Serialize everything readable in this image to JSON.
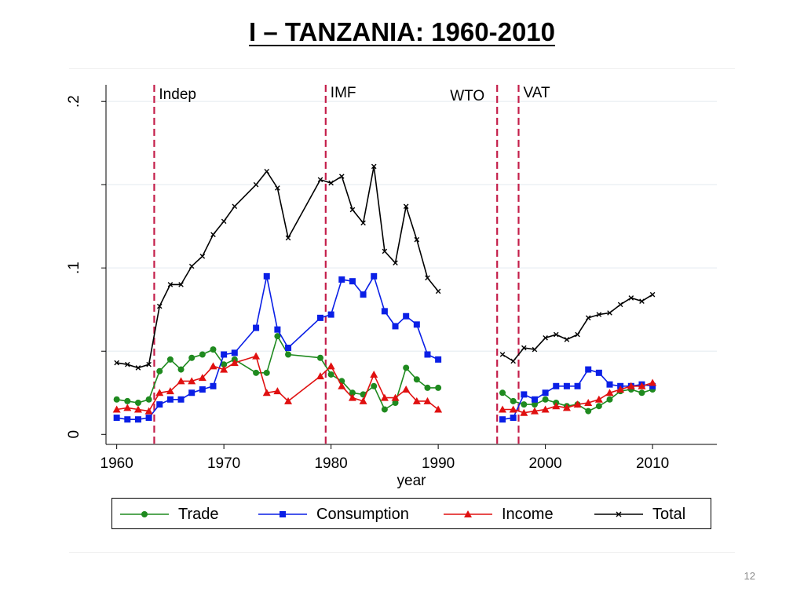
{
  "slide": {
    "title": "I – TANZANIA: 1960-2010",
    "page_number": "12"
  },
  "colors": {
    "trade": "#1f8a1f",
    "consumption": "#0a1fe6",
    "income": "#e01010",
    "total": "#000000",
    "event_line": "#c41e4a",
    "grid": "#e8eef2"
  },
  "chart_data": {
    "type": "line",
    "title": "",
    "xlabel": "year",
    "ylabel": "",
    "xlim": [
      1959,
      2016
    ],
    "ylim": [
      -0.006,
      0.21
    ],
    "xticks": [
      1960,
      1970,
      1980,
      1990,
      2000,
      2010
    ],
    "yticks": [
      {
        "value": 0,
        "label": "0"
      },
      {
        "value": 0.05,
        "label": ""
      },
      {
        "value": 0.1,
        "label": ".1"
      },
      {
        "value": 0.15,
        "label": ""
      },
      {
        "value": 0.2,
        "label": ".2"
      }
    ],
    "grid": true,
    "legend_position": "bottom",
    "events": [
      {
        "x": 1963.5,
        "label": "Indep"
      },
      {
        "x": 1979.5,
        "label": "IMF"
      },
      {
        "x": 1995.5,
        "label": "WTO"
      },
      {
        "x": 1997.5,
        "label": "VAT"
      }
    ],
    "series": [
      {
        "name": "Trade",
        "color": "#1f8a1f",
        "marker": "circle",
        "segments": [
          [
            [
              1960,
              0.021
            ],
            [
              1961,
              0.02
            ],
            [
              1962,
              0.019
            ],
            [
              1963,
              0.021
            ],
            [
              1964,
              0.038
            ],
            [
              1965,
              0.045
            ],
            [
              1966,
              0.039
            ],
            [
              1967,
              0.046
            ],
            [
              1968,
              0.048
            ],
            [
              1969,
              0.051
            ],
            [
              1970,
              0.042
            ],
            [
              1971,
              0.045
            ],
            [
              1973,
              0.037
            ],
            [
              1974,
              0.037
            ],
            [
              1975,
              0.059
            ],
            [
              1976,
              0.048
            ],
            [
              1979,
              0.046
            ],
            [
              1980,
              0.036
            ],
            [
              1981,
              0.032
            ],
            [
              1982,
              0.025
            ],
            [
              1983,
              0.024
            ],
            [
              1984,
              0.029
            ],
            [
              1985,
              0.015
            ],
            [
              1986,
              0.019
            ],
            [
              1987,
              0.04
            ],
            [
              1988,
              0.033
            ],
            [
              1989,
              0.028
            ],
            [
              1990,
              0.028
            ]
          ],
          [
            [
              1996,
              0.025
            ],
            [
              1997,
              0.02
            ],
            [
              1998,
              0.018
            ],
            [
              1999,
              0.018
            ],
            [
              2000,
              0.021
            ],
            [
              2001,
              0.019
            ],
            [
              2002,
              0.017
            ],
            [
              2003,
              0.018
            ],
            [
              2004,
              0.014
            ],
            [
              2005,
              0.017
            ],
            [
              2006,
              0.021
            ],
            [
              2007,
              0.026
            ],
            [
              2008,
              0.027
            ],
            [
              2009,
              0.025
            ],
            [
              2010,
              0.027
            ]
          ]
        ]
      },
      {
        "name": "Consumption",
        "color": "#0a1fe6",
        "marker": "square",
        "segments": [
          [
            [
              1960,
              0.01
            ],
            [
              1961,
              0.009
            ],
            [
              1962,
              0.009
            ],
            [
              1963,
              0.01
            ],
            [
              1964,
              0.018
            ],
            [
              1965,
              0.021
            ],
            [
              1966,
              0.021
            ],
            [
              1967,
              0.025
            ],
            [
              1968,
              0.027
            ],
            [
              1969,
              0.029
            ],
            [
              1970,
              0.048
            ],
            [
              1971,
              0.049
            ],
            [
              1973,
              0.064
            ],
            [
              1974,
              0.095
            ],
            [
              1975,
              0.063
            ],
            [
              1976,
              0.052
            ],
            [
              1979,
              0.07
            ],
            [
              1980,
              0.072
            ],
            [
              1981,
              0.093
            ],
            [
              1982,
              0.092
            ],
            [
              1983,
              0.084
            ],
            [
              1984,
              0.095
            ],
            [
              1985,
              0.074
            ],
            [
              1986,
              0.065
            ],
            [
              1987,
              0.071
            ],
            [
              1988,
              0.066
            ],
            [
              1989,
              0.048
            ],
            [
              1990,
              0.045
            ]
          ],
          [
            [
              1996,
              0.009
            ],
            [
              1997,
              0.01
            ],
            [
              1998,
              0.024
            ],
            [
              1999,
              0.021
            ],
            [
              2000,
              0.025
            ],
            [
              2001,
              0.029
            ],
            [
              2002,
              0.029
            ],
            [
              2003,
              0.029
            ],
            [
              2004,
              0.039
            ],
            [
              2005,
              0.037
            ],
            [
              2006,
              0.03
            ],
            [
              2007,
              0.029
            ],
            [
              2008,
              0.029
            ],
            [
              2009,
              0.03
            ],
            [
              2010,
              0.029
            ]
          ]
        ]
      },
      {
        "name": "Income",
        "color": "#e01010",
        "marker": "triangle",
        "segments": [
          [
            [
              1960,
              0.015
            ],
            [
              1961,
              0.016
            ],
            [
              1962,
              0.015
            ],
            [
              1963,
              0.014
            ],
            [
              1964,
              0.025
            ],
            [
              1965,
              0.026
            ],
            [
              1966,
              0.032
            ],
            [
              1967,
              0.032
            ],
            [
              1968,
              0.034
            ],
            [
              1969,
              0.041
            ],
            [
              1970,
              0.039
            ],
            [
              1971,
              0.043
            ],
            [
              1973,
              0.047
            ],
            [
              1974,
              0.025
            ],
            [
              1975,
              0.026
            ],
            [
              1976,
              0.02
            ],
            [
              1979,
              0.035
            ],
            [
              1980,
              0.041
            ],
            [
              1981,
              0.029
            ],
            [
              1982,
              0.022
            ],
            [
              1983,
              0.02
            ],
            [
              1984,
              0.036
            ],
            [
              1985,
              0.022
            ],
            [
              1986,
              0.022
            ],
            [
              1987,
              0.027
            ],
            [
              1988,
              0.02
            ],
            [
              1989,
              0.02
            ],
            [
              1990,
              0.015
            ]
          ],
          [
            [
              1996,
              0.015
            ],
            [
              1997,
              0.015
            ],
            [
              1998,
              0.013
            ],
            [
              1999,
              0.014
            ],
            [
              2000,
              0.015
            ],
            [
              2001,
              0.017
            ],
            [
              2002,
              0.016
            ],
            [
              2003,
              0.018
            ],
            [
              2004,
              0.019
            ],
            [
              2005,
              0.021
            ],
            [
              2006,
              0.025
            ],
            [
              2007,
              0.027
            ],
            [
              2008,
              0.029
            ],
            [
              2009,
              0.029
            ],
            [
              2010,
              0.031
            ]
          ]
        ]
      },
      {
        "name": "Total",
        "color": "#000000",
        "marker": "x",
        "segments": [
          [
            [
              1960,
              0.043
            ],
            [
              1961,
              0.042
            ],
            [
              1962,
              0.04
            ],
            [
              1963,
              0.042
            ],
            [
              1964,
              0.077
            ],
            [
              1965,
              0.09
            ],
            [
              1966,
              0.09
            ],
            [
              1967,
              0.101
            ],
            [
              1968,
              0.107
            ],
            [
              1969,
              0.12
            ],
            [
              1970,
              0.128
            ],
            [
              1971,
              0.137
            ],
            [
              1973,
              0.15
            ],
            [
              1974,
              0.158
            ],
            [
              1975,
              0.148
            ],
            [
              1976,
              0.118
            ],
            [
              1979,
              0.153
            ],
            [
              1980,
              0.151
            ],
            [
              1981,
              0.155
            ],
            [
              1982,
              0.135
            ],
            [
              1983,
              0.127
            ],
            [
              1984,
              0.161
            ],
            [
              1985,
              0.11
            ],
            [
              1986,
              0.103
            ],
            [
              1987,
              0.137
            ],
            [
              1988,
              0.117
            ],
            [
              1989,
              0.094
            ],
            [
              1990,
              0.086
            ]
          ],
          [
            [
              1996,
              0.048
            ],
            [
              1997,
              0.044
            ],
            [
              1998,
              0.052
            ],
            [
              1999,
              0.051
            ],
            [
              2000,
              0.058
            ],
            [
              2001,
              0.06
            ],
            [
              2002,
              0.057
            ],
            [
              2003,
              0.06
            ],
            [
              2004,
              0.07
            ],
            [
              2005,
              0.072
            ],
            [
              2006,
              0.073
            ],
            [
              2007,
              0.078
            ],
            [
              2008,
              0.082
            ],
            [
              2009,
              0.08
            ],
            [
              2010,
              0.084
            ]
          ]
        ]
      }
    ]
  }
}
